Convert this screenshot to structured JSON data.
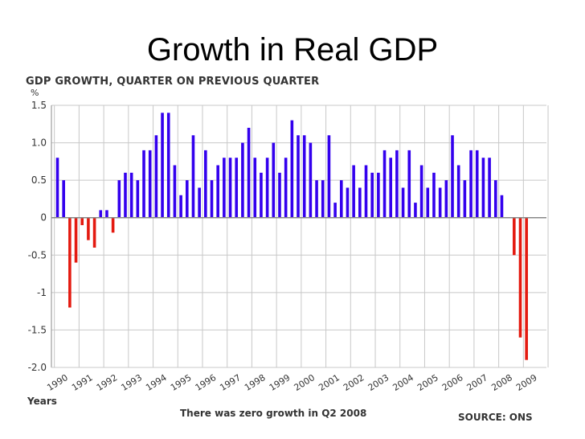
{
  "slide_title": "Growth in Real GDP",
  "chart_data": {
    "type": "bar",
    "title": "GDP GROWTH, QUARTER ON PREVIOUS QUARTER",
    "ylabel": "%",
    "xlabel": "Years",
    "ylim": [
      -2.0,
      1.5
    ],
    "yticks": [
      "1.5",
      "1.0",
      "0.5",
      "0",
      "-0.5",
      "-1",
      "-1.5",
      "-2.0"
    ],
    "ytick_values": [
      1.5,
      1.0,
      0.5,
      0,
      -0.5,
      -1,
      -1.5,
      -2.0
    ],
    "year_labels": [
      "1990",
      "1991",
      "1992",
      "1993",
      "1994",
      "1995",
      "1996",
      "1997",
      "1998",
      "1999",
      "2000",
      "2001",
      "2002",
      "2003",
      "2004",
      "2005",
      "2006",
      "2007",
      "2008",
      "2009"
    ],
    "quarters_per_year": 4,
    "grid": true,
    "values": [
      0.8,
      0.5,
      -1.2,
      -0.6,
      -0.1,
      -0.3,
      -0.4,
      0.1,
      0.1,
      -0.2,
      0.5,
      0.6,
      0.6,
      0.5,
      0.9,
      0.9,
      1.1,
      1.4,
      1.4,
      0.7,
      0.3,
      0.5,
      1.1,
      0.4,
      0.9,
      0.5,
      0.7,
      0.8,
      0.8,
      0.8,
      1.0,
      1.2,
      0.8,
      0.6,
      0.8,
      1.0,
      0.6,
      0.8,
      1.3,
      1.1,
      1.1,
      1.0,
      0.5,
      0.5,
      1.1,
      0.2,
      0.5,
      0.4,
      0.7,
      0.4,
      0.7,
      0.6,
      0.6,
      0.9,
      0.8,
      0.9,
      0.4,
      0.9,
      0.2,
      0.7,
      0.4,
      0.6,
      0.4,
      0.5,
      1.1,
      0.7,
      0.5,
      0.9,
      0.9,
      0.8,
      0.8,
      0.5,
      0.3,
      0.0,
      -0.5,
      -1.6,
      -1.9
    ],
    "colors": {
      "positive": "#3300ee",
      "negative": "#e41a10",
      "grid": "#c8c8c8",
      "axis": "#888888"
    },
    "annotation": "There was zero growth in Q2 2008",
    "source": "SOURCE: ONS"
  }
}
